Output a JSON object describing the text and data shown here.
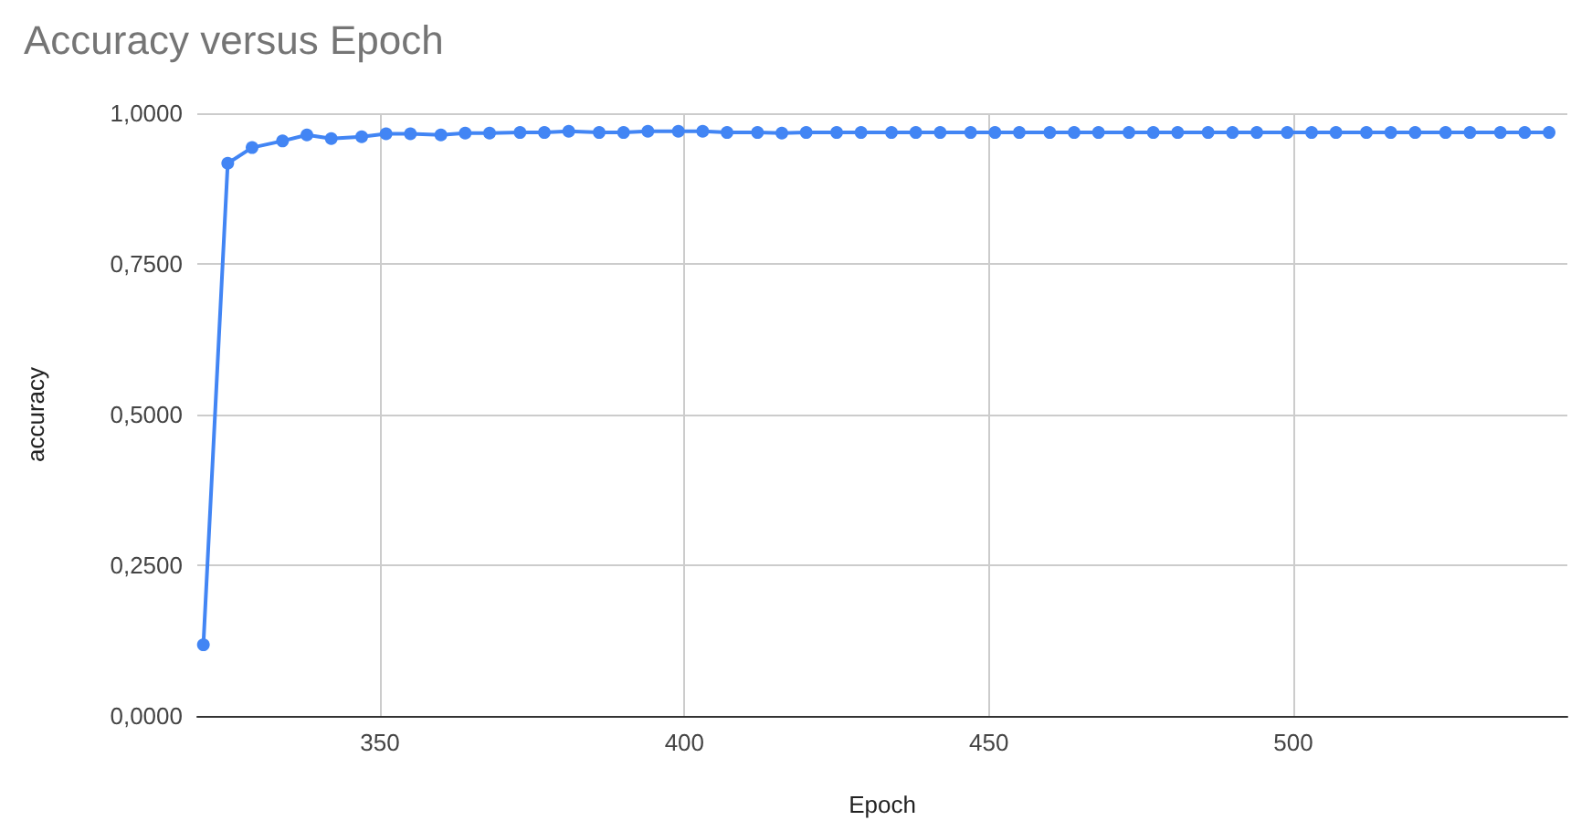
{
  "chart_data": {
    "type": "line",
    "title": "Accuracy versus Epoch",
    "xlabel": "Epoch",
    "ylabel": "accuracy",
    "x": [
      321,
      325,
      329,
      334,
      338,
      342,
      347,
      351,
      355,
      360,
      364,
      368,
      373,
      377,
      381,
      386,
      390,
      394,
      399,
      403,
      407,
      412,
      416,
      420,
      425,
      429,
      434,
      438,
      442,
      447,
      451,
      455,
      460,
      464,
      468,
      473,
      477,
      481,
      486,
      490,
      494,
      499,
      503,
      507,
      512,
      516,
      520,
      525,
      529,
      534,
      538,
      542
    ],
    "series": [
      {
        "color": "#4285f4",
        "values": [
          0.118,
          0.917,
          0.943,
          0.954,
          0.964,
          0.958,
          0.961,
          0.966,
          0.966,
          0.964,
          0.967,
          0.967,
          0.968,
          0.968,
          0.97,
          0.968,
          0.968,
          0.97,
          0.97,
          0.97,
          0.968,
          0.968,
          0.967,
          0.968,
          0.968,
          0.968,
          0.968,
          0.968,
          0.968,
          0.968,
          0.968,
          0.968,
          0.968,
          0.968,
          0.968,
          0.968,
          0.968,
          0.968,
          0.968,
          0.968,
          0.968,
          0.968,
          0.968,
          0.968,
          0.968,
          0.968,
          0.968,
          0.968,
          0.968,
          0.968,
          0.968,
          0.968
        ]
      }
    ],
    "xlim": [
      320,
      545
    ],
    "xticks": [
      350,
      400,
      450,
      500
    ],
    "ylim": [
      0,
      1
    ],
    "yticks": [
      {
        "value": 0,
        "label": "0,0000"
      },
      {
        "value": 0.25,
        "label": "0,2500"
      },
      {
        "value": 0.5,
        "label": "0,5000"
      },
      {
        "value": 0.75,
        "label": "0,7500"
      },
      {
        "value": 1,
        "label": "1,0000"
      }
    ],
    "grid": true,
    "marker": "circle",
    "line_style": "solid"
  }
}
